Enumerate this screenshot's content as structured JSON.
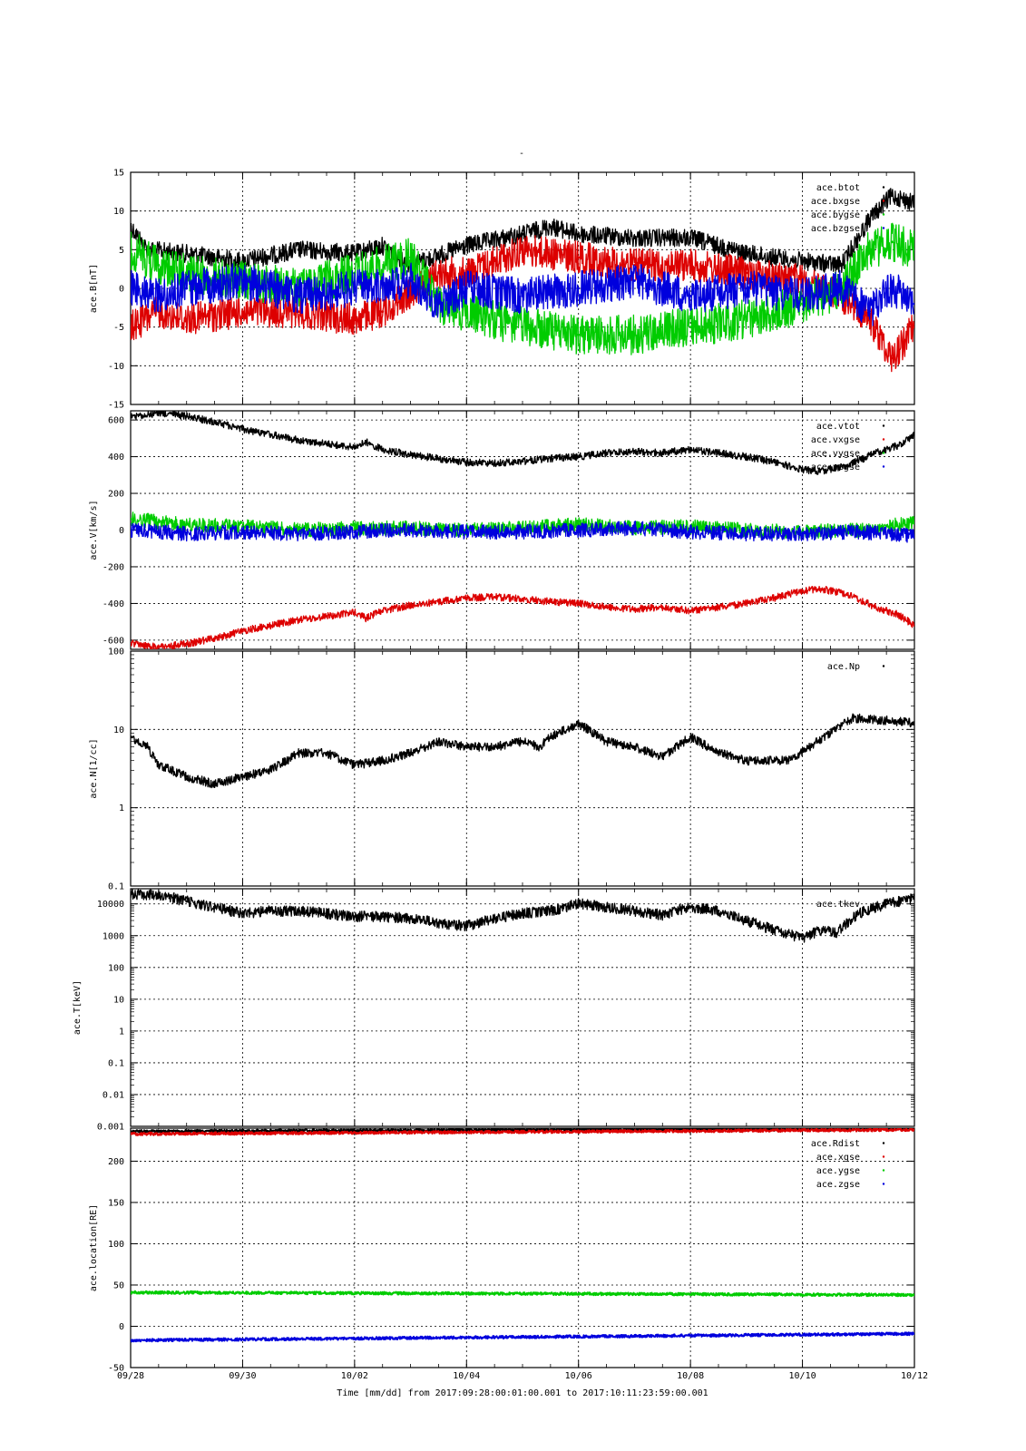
{
  "figure": {
    "title": "-",
    "xlabel_footer": "Time [mm/dd]  from 2017:09:28:00:01:00.001  to  2017:10:11:23:59:00.001"
  },
  "x_axis": {
    "ticks": [
      {
        "day": 0,
        "label": "09/28"
      },
      {
        "day": 2,
        "label": "09/30"
      },
      {
        "day": 4,
        "label": "10/02"
      },
      {
        "day": 6,
        "label": "10/04"
      },
      {
        "day": 8,
        "label": "10/06"
      },
      {
        "day": 10,
        "label": "10/08"
      },
      {
        "day": 12,
        "label": "10/10"
      },
      {
        "day": 14,
        "label": "10/12"
      }
    ],
    "range": [
      0,
      14
    ]
  },
  "colors": {
    "black": "#000000",
    "red": "#dd0000",
    "green": "#00cc00",
    "blue": "#0000dd"
  },
  "chart_data": [
    {
      "type": "scatter",
      "ylabel": "ace.B[nT]",
      "ylim": [
        -15,
        15
      ],
      "yticks": [
        {
          "v": 15,
          "label": "15"
        },
        {
          "v": 10,
          "label": "10"
        },
        {
          "v": 5,
          "label": "5"
        },
        {
          "v": 0,
          "label": "0"
        },
        {
          "v": -5,
          "label": "-5"
        },
        {
          "v": -10,
          "label": "-10"
        },
        {
          "v": -15,
          "label": "-15"
        }
      ],
      "grid": true,
      "legend_position": "top-right",
      "series": [
        {
          "name": "ace.btot",
          "color": "black",
          "x": [
            0,
            0.3,
            1,
            2,
            3,
            4,
            4.5,
            5,
            6,
            7,
            7.5,
            8,
            9,
            10,
            11,
            12,
            12.7,
            13.2,
            13.6,
            14
          ],
          "y": [
            8,
            5,
            4.5,
            3.5,
            5,
            4.5,
            5.5,
            3,
            5.5,
            7,
            8,
            7,
            6.5,
            6.5,
            4.5,
            3.5,
            3,
            9,
            12,
            11
          ]
        },
        {
          "name": "ace.bxgse",
          "color": "red",
          "x": [
            0,
            0.5,
            1,
            2,
            3,
            4,
            4.5,
            5.5,
            6,
            7,
            8,
            9,
            10,
            11,
            12,
            12.7,
            13.2,
            13.6,
            14
          ],
          "y": [
            -5,
            -3,
            -4,
            -3,
            -3,
            -4,
            -3,
            2,
            2,
            5,
            4,
            3,
            3,
            2,
            1,
            -1,
            -4,
            -9,
            -5
          ]
        },
        {
          "name": "ace.bygse",
          "color": "green",
          "x": [
            0,
            0.5,
            1,
            2,
            3,
            4,
            5,
            5.5,
            6,
            7,
            8,
            9,
            10,
            11,
            12,
            12.7,
            13.2,
            13.6,
            14
          ],
          "y": [
            5,
            3,
            2,
            1,
            0,
            2,
            4,
            -2,
            -3,
            -5,
            -6,
            -6,
            -5,
            -4,
            -2,
            0,
            5,
            6,
            5
          ]
        },
        {
          "name": "ace.bzgse",
          "color": "blue",
          "x": [
            0,
            0.5,
            1,
            2,
            3,
            4,
            5,
            5.5,
            6,
            7,
            8,
            9,
            10,
            11,
            12,
            12.7,
            13.2,
            13.6,
            14
          ],
          "y": [
            0,
            -1,
            0,
            1,
            -1,
            0,
            1,
            -2,
            0,
            -1,
            0,
            1,
            -1,
            0,
            -1,
            0,
            -3,
            0,
            -2
          ]
        }
      ]
    },
    {
      "type": "scatter",
      "ylabel": "ace.V[km/s]",
      "ylim": [
        -650,
        650
      ],
      "yticks": [
        {
          "v": 600,
          "label": "600"
        },
        {
          "v": 400,
          "label": "400"
        },
        {
          "v": 200,
          "label": "200"
        },
        {
          "v": 0,
          "label": "0"
        },
        {
          "v": -200,
          "label": "-200"
        },
        {
          "v": -400,
          "label": "-400"
        },
        {
          "v": -600,
          "label": "-600"
        }
      ],
      "grid": true,
      "legend_position": "top-right",
      "series": [
        {
          "name": "ace.vtot",
          "color": "black",
          "x": [
            0,
            0.5,
            1,
            1.5,
            2,
            2.5,
            3,
            3.5,
            4,
            4.2,
            4.5,
            5,
            5.5,
            6,
            6.5,
            7,
            7.5,
            8,
            8.5,
            9,
            9.5,
            10,
            10.5,
            11,
            11.5,
            12,
            12.3,
            12.8,
            13.3,
            13.7,
            14
          ],
          "y": [
            615,
            640,
            620,
            590,
            550,
            520,
            490,
            470,
            450,
            480,
            440,
            410,
            390,
            370,
            365,
            375,
            390,
            400,
            420,
            430,
            420,
            440,
            420,
            400,
            370,
            330,
            320,
            350,
            420,
            460,
            520
          ]
        },
        {
          "name": "ace.vxgse",
          "color": "red",
          "x": [
            0,
            0.5,
            1,
            1.5,
            2,
            2.5,
            3,
            3.5,
            4,
            4.2,
            4.5,
            5,
            5.5,
            6,
            6.5,
            7,
            7.5,
            8,
            8.5,
            9,
            9.5,
            10,
            10.5,
            11,
            11.5,
            12,
            12.3,
            12.8,
            13.3,
            13.7,
            14
          ],
          "y": [
            -615,
            -640,
            -620,
            -590,
            -550,
            -520,
            -490,
            -470,
            -450,
            -480,
            -440,
            -410,
            -390,
            -370,
            -365,
            -375,
            -390,
            -400,
            -420,
            -430,
            -420,
            -440,
            -420,
            -400,
            -370,
            -330,
            -320,
            -350,
            -420,
            -460,
            -520
          ]
        },
        {
          "name": "ace.vygse",
          "color": "green",
          "x": [
            0,
            1,
            2,
            3,
            4,
            5,
            6,
            7,
            8,
            9,
            10,
            11,
            12,
            13,
            14
          ],
          "y": [
            60,
            30,
            20,
            0,
            10,
            10,
            0,
            10,
            30,
            10,
            20,
            0,
            -10,
            0,
            40
          ]
        },
        {
          "name": "ace.vzgse",
          "color": "blue",
          "x": [
            0,
            1,
            2,
            3,
            4,
            5,
            6,
            7,
            8,
            9,
            10,
            11,
            12,
            13,
            14
          ],
          "y": [
            0,
            -20,
            -10,
            -20,
            -10,
            0,
            -10,
            -10,
            0,
            10,
            -10,
            -20,
            -20,
            -10,
            -30
          ]
        }
      ]
    },
    {
      "type": "scatter",
      "ylabel": "ace.N[1/cc]",
      "yscale": "log",
      "ylim": [
        0.1,
        100
      ],
      "yticks": [
        {
          "v": 100,
          "label": "100"
        },
        {
          "v": 10,
          "label": "10"
        },
        {
          "v": 1,
          "label": "1"
        },
        {
          "v": 0.1,
          "label": "0.1"
        }
      ],
      "grid": true,
      "legend_position": "top-right",
      "series": [
        {
          "name": "ace.Np",
          "color": "black",
          "x": [
            0,
            0.3,
            0.5,
            1,
            1.5,
            2,
            2.5,
            3,
            3.5,
            4,
            4.5,
            5,
            5.5,
            6,
            6.5,
            7,
            7.3,
            7.5,
            8,
            8.5,
            9,
            9.5,
            10,
            10.5,
            11,
            11.5,
            11.75,
            12.9,
            13.5,
            14
          ],
          "y": [
            8,
            6,
            3.5,
            2.5,
            2,
            2.5,
            3,
            5,
            5,
            3.5,
            4,
            5,
            7,
            6,
            6,
            7,
            6,
            8,
            12,
            7,
            6,
            4.5,
            8,
            5,
            4,
            4,
            4,
            14,
            13,
            12
          ]
        }
      ]
    },
    {
      "type": "scatter",
      "ylabel": "ace.T[keV]",
      "yscale": "log",
      "ylim": [
        0.001,
        30000
      ],
      "yticks": [
        {
          "v": 10000,
          "label": "10000"
        },
        {
          "v": 1000,
          "label": "1000"
        },
        {
          "v": 100,
          "label": "100"
        },
        {
          "v": 10,
          "label": "10"
        },
        {
          "v": 1,
          "label": "1"
        },
        {
          "v": 0.1,
          "label": "0.1"
        },
        {
          "v": 0.01,
          "label": "0.01"
        },
        {
          "v": 0.001,
          "label": "0.001"
        }
      ],
      "grid": true,
      "legend_position": "top-right",
      "series": [
        {
          "name": "ace.tkev",
          "color": "black",
          "x": [
            0,
            0.5,
            1,
            1.5,
            2,
            2.5,
            3,
            3.5,
            4,
            4.5,
            5,
            5.5,
            6,
            6.5,
            7,
            7.5,
            8,
            8.5,
            9,
            9.5,
            10,
            10.5,
            11,
            11.5,
            12,
            12.3,
            12.6,
            13,
            13.5,
            14
          ],
          "y": [
            20000,
            20000,
            12000,
            8000,
            5000,
            6000,
            6000,
            5000,
            4000,
            4000,
            3500,
            2500,
            2000,
            3500,
            5000,
            6000,
            10000,
            8000,
            6000,
            4500,
            8000,
            6000,
            3000,
            1500,
            800,
            1500,
            1200,
            5000,
            10000,
            15000
          ]
        }
      ]
    },
    {
      "type": "scatter",
      "ylabel": "ace.location[RE]",
      "ylim": [
        -50,
        240
      ],
      "yticks": [
        {
          "v": 200,
          "label": "200"
        },
        {
          "v": 150,
          "label": "150"
        },
        {
          "v": 100,
          "label": "100"
        },
        {
          "v": 50,
          "label": "50"
        },
        {
          "v": 0,
          "label": "0"
        },
        {
          "v": -50,
          "label": "-50"
        }
      ],
      "grid": true,
      "legend_position": "top-right",
      "series": [
        {
          "name": "ace.Rdist",
          "color": "black",
          "x": [
            0,
            14
          ],
          "y": [
            236,
            240
          ]
        },
        {
          "name": "ace.xgse",
          "color": "red",
          "x": [
            0,
            14
          ],
          "y": [
            233,
            238
          ]
        },
        {
          "name": "ace.ygse",
          "color": "green",
          "x": [
            0,
            14
          ],
          "y": [
            41,
            38
          ]
        },
        {
          "name": "ace.zgse",
          "color": "blue",
          "x": [
            0,
            14
          ],
          "y": [
            -17,
            -9
          ]
        }
      ]
    }
  ]
}
